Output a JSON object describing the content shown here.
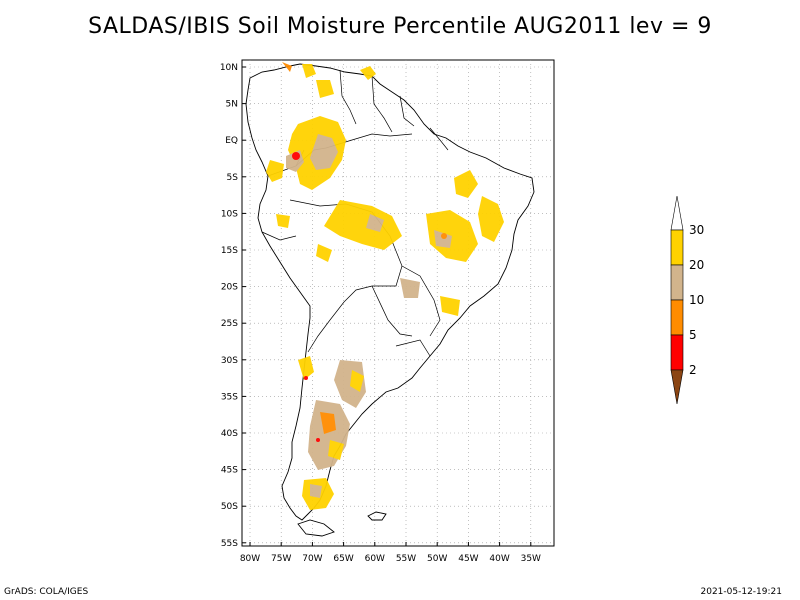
{
  "title": "SALDAS/IBIS Soil Moisture Percentile AUG2011 lev = 9",
  "lat_labels": [
    "10N",
    "5N",
    "EQ",
    "5S",
    "10S",
    "15S",
    "20S",
    "25S",
    "30S",
    "35S",
    "40S",
    "45S",
    "50S",
    "55S"
  ],
  "lon_labels": [
    "80W",
    "75W",
    "70W",
    "65W",
    "60W",
    "55W",
    "50W",
    "45W",
    "40W",
    "35W"
  ],
  "colorbar": {
    "labels": [
      "30",
      "20",
      "10",
      "5",
      "2"
    ],
    "colors": {
      "above_30": "#ffffff",
      "20_30": "#ffd200",
      "10_20": "#d2b48c",
      "5_10": "#ff8c00",
      "2_5": "#ff0000",
      "below_2": "#8b4513"
    }
  },
  "footer_left": "GrADS: COLA/IGES",
  "footer_right": "2021-05-12-19:21"
}
